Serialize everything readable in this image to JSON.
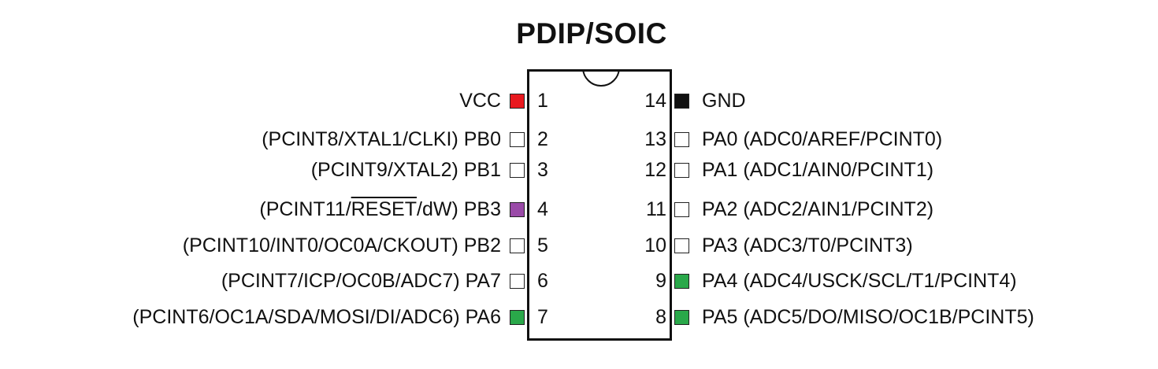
{
  "title": "PDIP/SOIC",
  "colors": {
    "power": "#e8191f",
    "ground": "#111111",
    "reset": "#9a4aa8",
    "usi": "#2aa84a",
    "default": "#ffffff"
  },
  "left_pins": [
    {
      "num": "1",
      "pre": "",
      "pre2": "",
      "over": "",
      "post": "VCC",
      "pad_color": "#e8191f"
    },
    {
      "num": "2",
      "pre": "(PCINT8/XTAL1/CLKI) PB0",
      "pre2": "",
      "over": "",
      "post": "",
      "pad_color": "#ffffff"
    },
    {
      "num": "3",
      "pre": "(PCINT9/XTAL2) PB1",
      "pre2": "",
      "over": "",
      "post": "",
      "pad_color": "#ffffff"
    },
    {
      "num": "4",
      "pre": "(PCINT11/",
      "pre2": "",
      "over": "RESET",
      "post": "/dW) PB3",
      "pad_color": "#9a4aa8"
    },
    {
      "num": "5",
      "pre": "(PCINT10/INT0/OC0A/CKOUT) PB2",
      "pre2": "",
      "over": "",
      "post": "",
      "pad_color": "#ffffff"
    },
    {
      "num": "6",
      "pre": "(PCINT7/ICP/OC0B/ADC7) PA7",
      "pre2": "",
      "over": "",
      "post": "",
      "pad_color": "#ffffff"
    },
    {
      "num": "7",
      "pre": "(PCINT6/OC1A/SDA/MOSI/DI/ADC6) PA6",
      "pre2": "",
      "over": "",
      "post": "",
      "pad_color": "#2aa84a"
    }
  ],
  "right_pins": [
    {
      "num": "14",
      "name": "GND",
      "pad_color": "#111111"
    },
    {
      "num": "13",
      "name": "PA0 (ADC0/AREF/PCINT0)",
      "pad_color": "#ffffff"
    },
    {
      "num": "12",
      "name": "PA1 (ADC1/AIN0/PCINT1)",
      "pad_color": "#ffffff"
    },
    {
      "num": "11",
      "name": "PA2 (ADC2/AIN1/PCINT2)",
      "pad_color": "#ffffff"
    },
    {
      "num": "10",
      "name": "PA3 (ADC3/T0/PCINT3)",
      "pad_color": "#ffffff"
    },
    {
      "num": "9",
      "name": "PA4 (ADC4/USCK/SCL/T1/PCINT4)",
      "pad_color": "#2aa84a"
    },
    {
      "num": "8",
      "name": "PA5 (ADC5/DO/MISO/OC1B/PCINT5)",
      "pad_color": "#2aa84a"
    }
  ]
}
